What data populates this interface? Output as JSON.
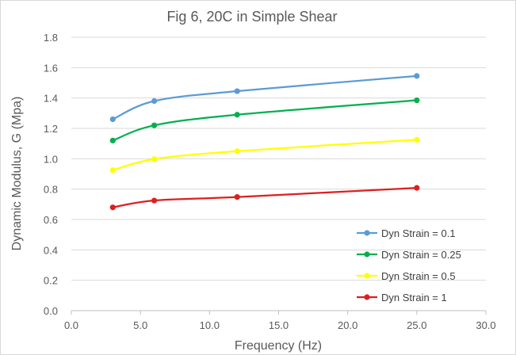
{
  "chart_data": {
    "type": "line",
    "title": "Fig 6, 20C in Simple Shear",
    "xlabel": "Frequency (Hz)",
    "ylabel": "Dynamic Modulus, G (Mpa)",
    "xlim": [
      0,
      30
    ],
    "ylim": [
      0,
      1.8
    ],
    "x_ticks": [
      "0.0",
      "5.0",
      "10.0",
      "15.0",
      "20.0",
      "25.0",
      "30.0"
    ],
    "y_ticks": [
      "0.0",
      "0.2",
      "0.4",
      "0.6",
      "0.8",
      "1.0",
      "1.2",
      "1.4",
      "1.6",
      "1.8"
    ],
    "grid": "horizontal",
    "legend_position": "bottom-right",
    "series": [
      {
        "name": "Dyn Strain = 0.1",
        "color": "#5b9bd5",
        "x": [
          3,
          6,
          12,
          25
        ],
        "y": [
          1.26,
          1.38,
          1.445,
          1.545
        ]
      },
      {
        "name": "Dyn Strain = 0.25",
        "color": "#00b050",
        "x": [
          3,
          6,
          12,
          25
        ],
        "y": [
          1.12,
          1.22,
          1.29,
          1.385
        ]
      },
      {
        "name": "Dyn Strain = 0.5",
        "color": "#ffff00",
        "x": [
          3,
          6,
          12,
          25
        ],
        "y": [
          0.925,
          0.998,
          1.05,
          1.125
        ]
      },
      {
        "name": "Dyn Strain = 1",
        "color": "#e01e1e",
        "x": [
          3,
          6,
          12,
          25
        ],
        "y": [
          0.68,
          0.725,
          0.748,
          0.808
        ]
      }
    ]
  }
}
